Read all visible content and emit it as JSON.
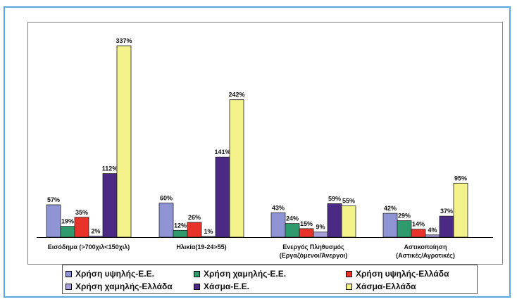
{
  "chart_data": {
    "type": "bar",
    "categories": [
      [
        "Εισόδημα (>700χιλ<150χιλ)"
      ],
      [
        "Ηλικία(19-24>55)"
      ],
      [
        "Ενεργός Πληθυσμός",
        "(Εργαζόμενοι/Άνεργοι)"
      ],
      [
        "Αστικοποίηση",
        "(Αστικές/Αγροτικές)"
      ]
    ],
    "series": [
      {
        "name": "Χρήση υψηλής-Ε.Ε.",
        "color": "#8f95d4",
        "values": [
          57,
          60,
          43,
          42
        ],
        "labels": [
          "57%",
          "60%",
          "43%",
          "42%"
        ]
      },
      {
        "name": "Χρήση χαμηλής-Ε.Ε.",
        "color": "#2f9a6e",
        "values": [
          19,
          12,
          24,
          29
        ],
        "labels": [
          "19%",
          "12%",
          "24%",
          "29%"
        ]
      },
      {
        "name": "Χρήση υψηλής-Ελλάδα",
        "color": "#e8322a",
        "values": [
          35,
          26,
          15,
          14
        ],
        "labels": [
          "35%",
          "26%",
          "15%",
          "14%"
        ]
      },
      {
        "name": "Χρήση χαμηλής-Ελλάδα",
        "color": "#a79fd8",
        "values": [
          2,
          1,
          9,
          4
        ],
        "labels": [
          "2%",
          "1%",
          "9%",
          "4%"
        ]
      },
      {
        "name": "Χάσμα-Ε.Ε.",
        "color": "#4b2a86",
        "values": [
          112,
          141,
          59,
          37
        ],
        "labels": [
          "112%",
          "141%",
          "59%",
          "37%"
        ]
      },
      {
        "name": "Χάσμα-Ελλάδα",
        "color": "#f4f28a",
        "values": [
          337,
          242,
          55,
          95
        ],
        "labels": [
          "337%",
          "242%",
          "55%",
          "95%"
        ]
      }
    ],
    "ylim": [
      0,
      350
    ],
    "grid": false,
    "legend_position": "bottom"
  }
}
